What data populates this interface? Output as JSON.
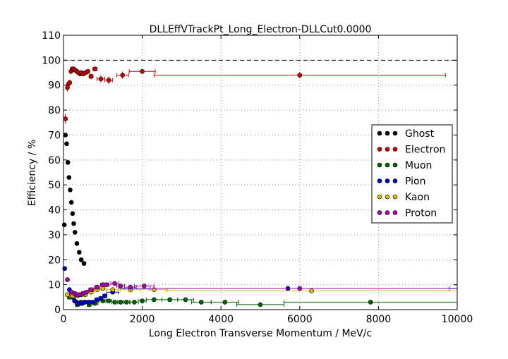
{
  "chart_data": {
    "type": "scatter",
    "title": "DLLEffVTrackPt_Long_Electron-DLLCut0.0000",
    "xlabel": "Long Electron Transverse Momentum / MeV/c",
    "ylabel": "Efficiency / %",
    "xlim": [
      0,
      10000
    ],
    "ylim": [
      0,
      110
    ],
    "xticks": [
      0,
      2000,
      4000,
      6000,
      8000,
      10000
    ],
    "yticks": [
      0,
      10,
      20,
      30,
      40,
      50,
      60,
      70,
      80,
      90,
      100,
      110
    ],
    "grid": true,
    "reference_line_y": 100,
    "legend_position": "right",
    "series": [
      {
        "name": "Ghost",
        "color": "#000000",
        "x": [
          20,
          50,
          80,
          110,
          140,
          170,
          200,
          230,
          260,
          290,
          340,
          400,
          450,
          520
        ],
        "y": [
          34,
          70,
          66.5,
          59,
          53,
          48,
          43,
          38.5,
          34.5,
          31,
          26.5,
          23,
          20,
          18.5
        ],
        "xerr": [
          15,
          15,
          15,
          15,
          15,
          15,
          15,
          15,
          15,
          15,
          20,
          20,
          20,
          30
        ],
        "yerr": [
          0.8,
          0.8,
          0.8,
          0.8,
          0.8,
          0.8,
          0.8,
          0.8,
          0.8,
          0.8,
          0.8,
          0.8,
          0.8,
          0.8
        ]
      },
      {
        "name": "Electron",
        "color": "#cc0000",
        "x": [
          50,
          100,
          130,
          160,
          190,
          220,
          260,
          300,
          340,
          380,
          420,
          460,
          500,
          560,
          620,
          700,
          800,
          950,
          1150,
          1500,
          2000,
          6000
        ],
        "y": [
          76.5,
          89,
          90.5,
          91,
          95.5,
          96.5,
          96.5,
          96,
          95.5,
          95,
          94.5,
          95,
          94.5,
          95,
          95.5,
          93.5,
          96.5,
          92.5,
          92,
          94,
          95.5,
          94
        ],
        "xerr": [
          25,
          15,
          15,
          15,
          15,
          15,
          20,
          20,
          20,
          20,
          20,
          20,
          20,
          30,
          30,
          50,
          50,
          100,
          100,
          150,
          330,
          3700
        ],
        "yerr": [
          2,
          1.5,
          1.5,
          1.2,
          1,
          1,
          1,
          1,
          1,
          1,
          1,
          1,
          1,
          1,
          1,
          1.2,
          1,
          1.5,
          1.5,
          1.5,
          1,
          1.2
        ]
      },
      {
        "name": "Muon",
        "color": "#006600",
        "x": [
          150,
          250,
          350,
          450,
          550,
          650,
          800,
          1000,
          1150,
          1300,
          1450,
          1600,
          1800,
          2000,
          2300,
          2700,
          3100,
          3500,
          4100,
          5000,
          7800
        ],
        "y": [
          5,
          5,
          2,
          3,
          3,
          2,
          2.5,
          3.5,
          3.5,
          3,
          3,
          3,
          3,
          3.5,
          4,
          4,
          4,
          3,
          3,
          2,
          3
        ],
        "xerr": [
          50,
          50,
          50,
          50,
          50,
          50,
          75,
          100,
          75,
          75,
          75,
          75,
          100,
          100,
          200,
          200,
          200,
          250,
          350,
          600,
          2200
        ],
        "yerr": [
          0.6,
          0.6,
          0.6,
          0.6,
          0.6,
          0.6,
          0.6,
          0.6,
          0.6,
          0.6,
          0.6,
          0.6,
          0.6,
          0.6,
          0.6,
          0.6,
          0.6,
          0.6,
          0.6,
          0.6,
          0.6
        ]
      },
      {
        "name": "Pion",
        "color": "#0000cc",
        "x": [
          30,
          150,
          230,
          280,
          330,
          380,
          430,
          480,
          550,
          650,
          750,
          850,
          950,
          1050,
          1250,
          5700
        ],
        "y": [
          16.5,
          8,
          5,
          3.5,
          3,
          2.5,
          2.5,
          2.5,
          3,
          3,
          3,
          4,
          4.5,
          5.5,
          7,
          8.5
        ],
        "xerr": [
          20,
          30,
          20,
          20,
          20,
          20,
          20,
          20,
          50,
          50,
          50,
          50,
          50,
          50,
          150,
          4300
        ],
        "yerr": [
          0.8,
          0.6,
          0.6,
          0.6,
          0.6,
          0.6,
          0.6,
          0.6,
          0.6,
          0.6,
          0.6,
          0.6,
          0.6,
          0.6,
          0.6,
          0.5
        ]
      },
      {
        "name": "Kaon",
        "color": "#ddbb00",
        "x": [
          100,
          230,
          350,
          450,
          550,
          700,
          850,
          1000,
          1250,
          1700,
          2300,
          6300
        ],
        "y": [
          6,
          5.5,
          5.5,
          6,
          6,
          7,
          8,
          8.5,
          8,
          8,
          8,
          7.5
        ],
        "xerr": [
          50,
          50,
          50,
          50,
          50,
          75,
          75,
          75,
          150,
          250,
          350,
          3700
        ],
        "yerr": [
          0.6,
          0.6,
          0.6,
          0.6,
          0.6,
          0.6,
          0.6,
          0.6,
          0.6,
          0.6,
          0.6,
          0.5
        ]
      },
      {
        "name": "Proton",
        "color": "#aa00aa",
        "x": [
          100,
          200,
          280,
          350,
          420,
          500,
          580,
          700,
          850,
          1000,
          1100,
          1300,
          1450,
          1700,
          2050,
          6000
        ],
        "y": [
          12,
          7,
          6.5,
          6,
          6,
          6.5,
          7,
          8,
          9,
          10,
          10,
          10.5,
          9.5,
          9,
          9.5,
          8.5
        ],
        "xerr": [
          30,
          40,
          40,
          40,
          40,
          40,
          40,
          60,
          60,
          60,
          60,
          100,
          100,
          150,
          250,
          3800
        ],
        "yerr": [
          0.8,
          0.6,
          0.6,
          0.6,
          0.6,
          0.6,
          0.6,
          0.6,
          0.6,
          0.6,
          0.6,
          0.6,
          0.6,
          0.6,
          0.6,
          0.5
        ]
      }
    ]
  }
}
